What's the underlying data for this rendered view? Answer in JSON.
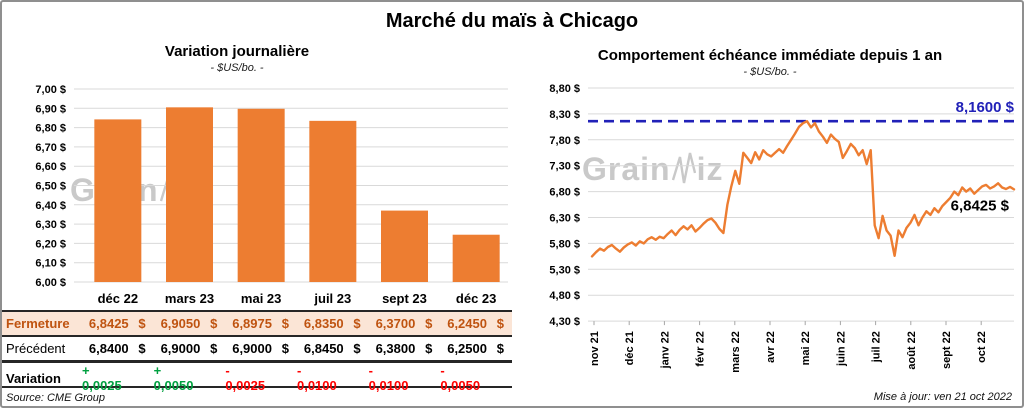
{
  "page": {
    "title": "Marché du maïs à Chicago",
    "source": "Source: CME Group",
    "updated": "Mise à jour: ven 21 oct 2022",
    "watermark": {
      "part1": "Grain",
      "part2": "iz"
    }
  },
  "left_chart": {
    "title": "Variation journalière",
    "subtitle": "- $US/bo. -"
  },
  "right_chart": {
    "title": "Comportement échéance immédiate depuis 1 an",
    "subtitle": "- $US/bo. -"
  },
  "table": {
    "columns": [
      "déc 22",
      "mars 23",
      "mai 23",
      "juil 23",
      "sept 23",
      "déc 23"
    ],
    "currency": "$",
    "rows": {
      "fermeture": {
        "label": "Fermeture",
        "values": [
          "6,8425",
          "6,9050",
          "6,8975",
          "6,8350",
          "6,3700",
          "6,2450"
        ]
      },
      "precedent": {
        "label": "Précédent",
        "values": [
          "6,8400",
          "6,9000",
          "6,9000",
          "6,8450",
          "6,3800",
          "6,2500"
        ]
      },
      "variation": {
        "label": "Variation",
        "values": [
          {
            "text": "+ 0,0025",
            "color": "green"
          },
          {
            "text": "+ 0,0050",
            "color": "green"
          },
          {
            "text": "- 0,0025",
            "color": "red"
          },
          {
            "text": "- 0,0100",
            "color": "red"
          },
          {
            "text": "- 0,0100",
            "color": "red"
          },
          {
            "text": "- 0,0050",
            "color": "red"
          }
        ]
      }
    }
  },
  "colors": {
    "orange": "#ED7D31",
    "ref_blue": "#2121B8",
    "grid": "#D9D9D9",
    "axis_tick": "#A6A6A6",
    "peach_bg": "#FBE5D6",
    "fermeture_text": "#BF5310",
    "green": "#00A040",
    "red": "#FF0000"
  },
  "chart_data": [
    {
      "type": "bar",
      "title": "Variation journalière",
      "subtitle": "- $US/bo. -",
      "categories": [
        "déc 22",
        "mars 23",
        "mai 23",
        "juil 23",
        "sept 23",
        "déc 23"
      ],
      "values": [
        6.8425,
        6.905,
        6.8975,
        6.835,
        6.37,
        6.245
      ],
      "value_labels": [
        "6,8425 $",
        "6,9050 $",
        "6,8975 $",
        "6,8350 $",
        "6,3700 $",
        "6,2450 $"
      ],
      "ylim": [
        6.0,
        7.0
      ],
      "ytick_step": 0.1,
      "ytick_labels": [
        "7,00 $",
        "6,90 $",
        "6,80 $",
        "6,70 $",
        "6,60 $",
        "6,50 $",
        "6,40 $",
        "6,30 $",
        "6,20 $",
        "6,10 $",
        "6,00 $"
      ],
      "grid": true,
      "bar_color": "#ED7D31"
    },
    {
      "type": "line",
      "title": "Comportement échéance immédiate depuis 1 an",
      "subtitle": "- $US/bo. -",
      "x_labels": [
        "nov 21",
        "déc 21",
        "janv 22",
        "févr 22",
        "mars 22",
        "avr 22",
        "mai 22",
        "juin 22",
        "juil 22",
        "août 22",
        "sept 22",
        "oct 22"
      ],
      "ylim": [
        4.3,
        8.8
      ],
      "ytick_step": 0.5,
      "ytick_labels": [
        "8,80 $",
        "8,30 $",
        "7,80 $",
        "7,30 $",
        "6,80 $",
        "6,30 $",
        "5,80 $",
        "5,30 $",
        "4,80 $",
        "4,30 $"
      ],
      "grid": true,
      "line_color": "#ED7D31",
      "reference_line": {
        "value": 8.16,
        "label": "8,1600 $",
        "color": "#2121B8",
        "style": "dashed"
      },
      "last_point": {
        "value": 6.8425,
        "label": "6,8425 $"
      },
      "values": [
        5.55,
        5.63,
        5.7,
        5.66,
        5.73,
        5.77,
        5.7,
        5.64,
        5.72,
        5.78,
        5.82,
        5.76,
        5.84,
        5.8,
        5.88,
        5.92,
        5.87,
        5.93,
        5.9,
        5.98,
        6.05,
        5.96,
        6.06,
        6.13,
        6.07,
        6.15,
        6.03,
        6.1,
        6.18,
        6.25,
        6.28,
        6.2,
        6.08,
        6.0,
        6.55,
        6.9,
        7.2,
        6.95,
        7.55,
        7.45,
        7.35,
        7.56,
        7.42,
        7.6,
        7.52,
        7.48,
        7.55,
        7.62,
        7.55,
        7.68,
        7.8,
        7.92,
        8.05,
        8.12,
        8.16,
        8.04,
        8.12,
        7.96,
        7.86,
        7.74,
        7.9,
        7.82,
        7.76,
        7.45,
        7.58,
        7.72,
        7.64,
        7.5,
        7.6,
        7.33,
        7.6,
        6.15,
        5.9,
        6.33,
        6.05,
        5.95,
        5.56,
        6.05,
        5.92,
        6.1,
        6.2,
        6.35,
        6.15,
        6.3,
        6.42,
        6.35,
        6.48,
        6.4,
        6.52,
        6.6,
        6.68,
        6.8,
        6.73,
        6.88,
        6.8,
        6.86,
        6.76,
        6.83,
        6.9,
        6.93,
        6.86,
        6.9,
        6.96,
        6.88,
        6.85,
        6.89,
        6.8425
      ]
    }
  ]
}
